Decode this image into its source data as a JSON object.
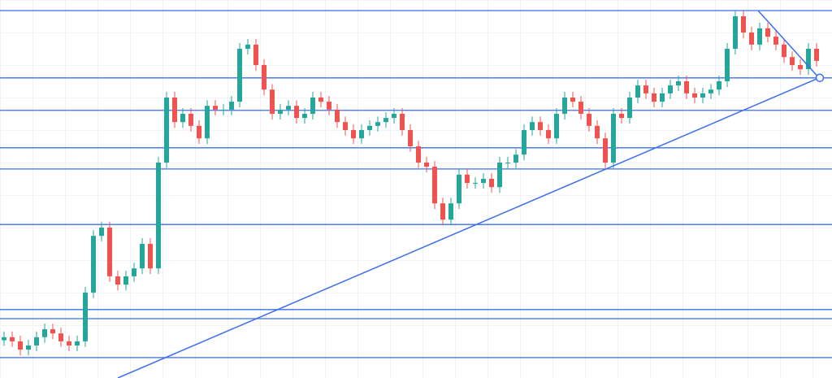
{
  "chart_data": {
    "type": "candlestick",
    "up_color": "#26a69a",
    "down_color": "#ef5350",
    "line_color": "#3b6ef0",
    "xlim": [
      0,
      102.4
    ],
    "ylim": [
      0,
      100
    ],
    "ohlc": [
      [
        10.0,
        12.3,
        8.5,
        10.8
      ],
      [
        10.8,
        12.3,
        8.2,
        9.7
      ],
      [
        9.7,
        11.2,
        6.0,
        7.5
      ],
      [
        7.5,
        10.1,
        6.0,
        8.6
      ],
      [
        8.6,
        12.3,
        7.1,
        10.8
      ],
      [
        10.8,
        14.4,
        9.3,
        12.9
      ],
      [
        12.9,
        14.4,
        10.3,
        11.8
      ],
      [
        11.8,
        13.3,
        8.2,
        9.7
      ],
      [
        9.7,
        11.2,
        7.1,
        8.6
      ],
      [
        8.6,
        11.2,
        7.1,
        9.7
      ],
      [
        9.7,
        24.1,
        8.2,
        22.6
      ],
      [
        22.6,
        39.1,
        21.1,
        37.6
      ],
      [
        37.6,
        41.3,
        36.1,
        39.8
      ],
      [
        39.8,
        41.3,
        25.4,
        26.9
      ],
      [
        26.9,
        28.4,
        23.2,
        24.7
      ],
      [
        24.7,
        28.4,
        23.2,
        26.9
      ],
      [
        26.9,
        30.5,
        25.4,
        29.0
      ],
      [
        29.0,
        37.0,
        27.5,
        35.5
      ],
      [
        35.5,
        37.0,
        27.5,
        29.0
      ],
      [
        29.0,
        58.5,
        27.5,
        57.0
      ],
      [
        57.0,
        75.7,
        55.5,
        74.2
      ],
      [
        74.2,
        75.7,
        66.2,
        67.7
      ],
      [
        67.7,
        71.4,
        66.2,
        69.9
      ],
      [
        69.9,
        71.4,
        65.2,
        66.7
      ],
      [
        66.7,
        68.2,
        61.9,
        63.4
      ],
      [
        63.4,
        73.5,
        61.9,
        72.0
      ],
      [
        72.0,
        73.5,
        69.5,
        71.0
      ],
      [
        71.0,
        72.5,
        69.5,
        71.0
      ],
      [
        71.0,
        74.6,
        69.5,
        73.1
      ],
      [
        73.1,
        88.6,
        71.6,
        87.1
      ],
      [
        87.1,
        89.7,
        85.6,
        88.2
      ],
      [
        88.2,
        89.7,
        81.3,
        82.8
      ],
      [
        82.8,
        84.3,
        74.8,
        76.3
      ],
      [
        76.3,
        77.8,
        68.4,
        69.9
      ],
      [
        69.9,
        72.5,
        68.4,
        71.0
      ],
      [
        71.0,
        73.5,
        69.5,
        72.0
      ],
      [
        72.0,
        73.5,
        67.3,
        68.8
      ],
      [
        68.8,
        71.4,
        67.3,
        69.9
      ],
      [
        69.9,
        75.7,
        68.4,
        74.2
      ],
      [
        74.2,
        75.7,
        71.6,
        73.1
      ],
      [
        73.1,
        74.6,
        69.5,
        71.0
      ],
      [
        71.0,
        72.5,
        66.2,
        67.7
      ],
      [
        67.7,
        69.2,
        64.1,
        65.6
      ],
      [
        65.6,
        67.1,
        61.9,
        63.4
      ],
      [
        63.4,
        67.1,
        61.9,
        65.6
      ],
      [
        65.6,
        68.2,
        64.1,
        66.7
      ],
      [
        66.7,
        69.2,
        65.2,
        67.7
      ],
      [
        67.7,
        70.3,
        66.2,
        68.8
      ],
      [
        68.8,
        71.4,
        67.3,
        69.9
      ],
      [
        69.9,
        71.4,
        64.1,
        65.6
      ],
      [
        65.6,
        67.1,
        59.8,
        61.3
      ],
      [
        61.3,
        62.8,
        55.5,
        57.0
      ],
      [
        57.0,
        58.5,
        54.4,
        55.9
      ],
      [
        55.9,
        57.4,
        44.7,
        46.2
      ],
      [
        46.2,
        47.7,
        40.4,
        41.9
      ],
      [
        41.9,
        47.7,
        40.4,
        46.2
      ],
      [
        46.2,
        55.3,
        44.7,
        53.8
      ],
      [
        53.8,
        55.3,
        50.1,
        51.6
      ],
      [
        51.6,
        53.1,
        50.1,
        51.6
      ],
      [
        51.6,
        54.2,
        50.1,
        52.7
      ],
      [
        52.7,
        54.2,
        49.0,
        50.5
      ],
      [
        50.5,
        58.5,
        49.0,
        57.0
      ],
      [
        57.0,
        58.5,
        55.5,
        57.0
      ],
      [
        57.0,
        60.6,
        55.5,
        59.1
      ],
      [
        59.1,
        67.1,
        57.6,
        65.6
      ],
      [
        65.6,
        69.2,
        64.1,
        67.7
      ],
      [
        67.7,
        69.2,
        64.1,
        65.6
      ],
      [
        65.6,
        67.1,
        61.9,
        63.4
      ],
      [
        63.4,
        71.4,
        61.9,
        69.9
      ],
      [
        69.9,
        75.7,
        68.4,
        74.2
      ],
      [
        74.2,
        75.7,
        71.6,
        73.1
      ],
      [
        73.1,
        74.6,
        68.4,
        69.9
      ],
      [
        69.9,
        71.4,
        65.2,
        66.7
      ],
      [
        66.7,
        68.2,
        61.9,
        63.4
      ],
      [
        63.4,
        64.9,
        55.5,
        57.0
      ],
      [
        57.0,
        71.4,
        55.5,
        69.9
      ],
      [
        69.9,
        71.4,
        67.3,
        68.8
      ],
      [
        68.8,
        75.7,
        67.3,
        74.2
      ],
      [
        74.2,
        78.9,
        72.7,
        77.4
      ],
      [
        77.4,
        78.9,
        73.8,
        75.3
      ],
      [
        75.3,
        76.8,
        71.6,
        73.1
      ],
      [
        73.1,
        76.8,
        71.6,
        75.3
      ],
      [
        75.3,
        78.9,
        73.8,
        77.4
      ],
      [
        77.4,
        80.0,
        75.9,
        78.5
      ],
      [
        78.5,
        80.0,
        73.8,
        75.3
      ],
      [
        75.3,
        76.8,
        72.7,
        74.2
      ],
      [
        74.2,
        76.8,
        72.7,
        75.3
      ],
      [
        75.3,
        77.8,
        73.8,
        76.3
      ],
      [
        76.3,
        80.0,
        74.8,
        78.5
      ],
      [
        78.5,
        88.6,
        77.0,
        87.1
      ],
      [
        87.1,
        97.2,
        85.6,
        95.7
      ],
      [
        95.7,
        97.2,
        89.9,
        91.4
      ],
      [
        91.4,
        92.9,
        86.7,
        88.2
      ],
      [
        88.2,
        94.0,
        86.7,
        92.5
      ],
      [
        92.5,
        94.0,
        88.8,
        90.3
      ],
      [
        90.3,
        91.8,
        86.7,
        88.2
      ],
      [
        88.2,
        89.7,
        83.4,
        84.9
      ],
      [
        84.9,
        86.4,
        81.3,
        82.8
      ],
      [
        82.8,
        84.3,
        80.2,
        81.7
      ],
      [
        81.7,
        88.6,
        80.2,
        87.1
      ],
      [
        87.1,
        88.6,
        82.4,
        83.9
      ]
    ],
    "hlines": [
      97.2,
      79.4,
      70.8,
      60.9,
      55.3,
      40.6,
      18.1,
      15.7,
      5.4
    ],
    "trendlines": [
      [
        [
          14.5,
          0
        ],
        [
          100.8,
          79.4
        ]
      ],
      [
        [
          93.3,
          97.2
        ],
        [
          100.8,
          79.4
        ]
      ]
    ]
  }
}
